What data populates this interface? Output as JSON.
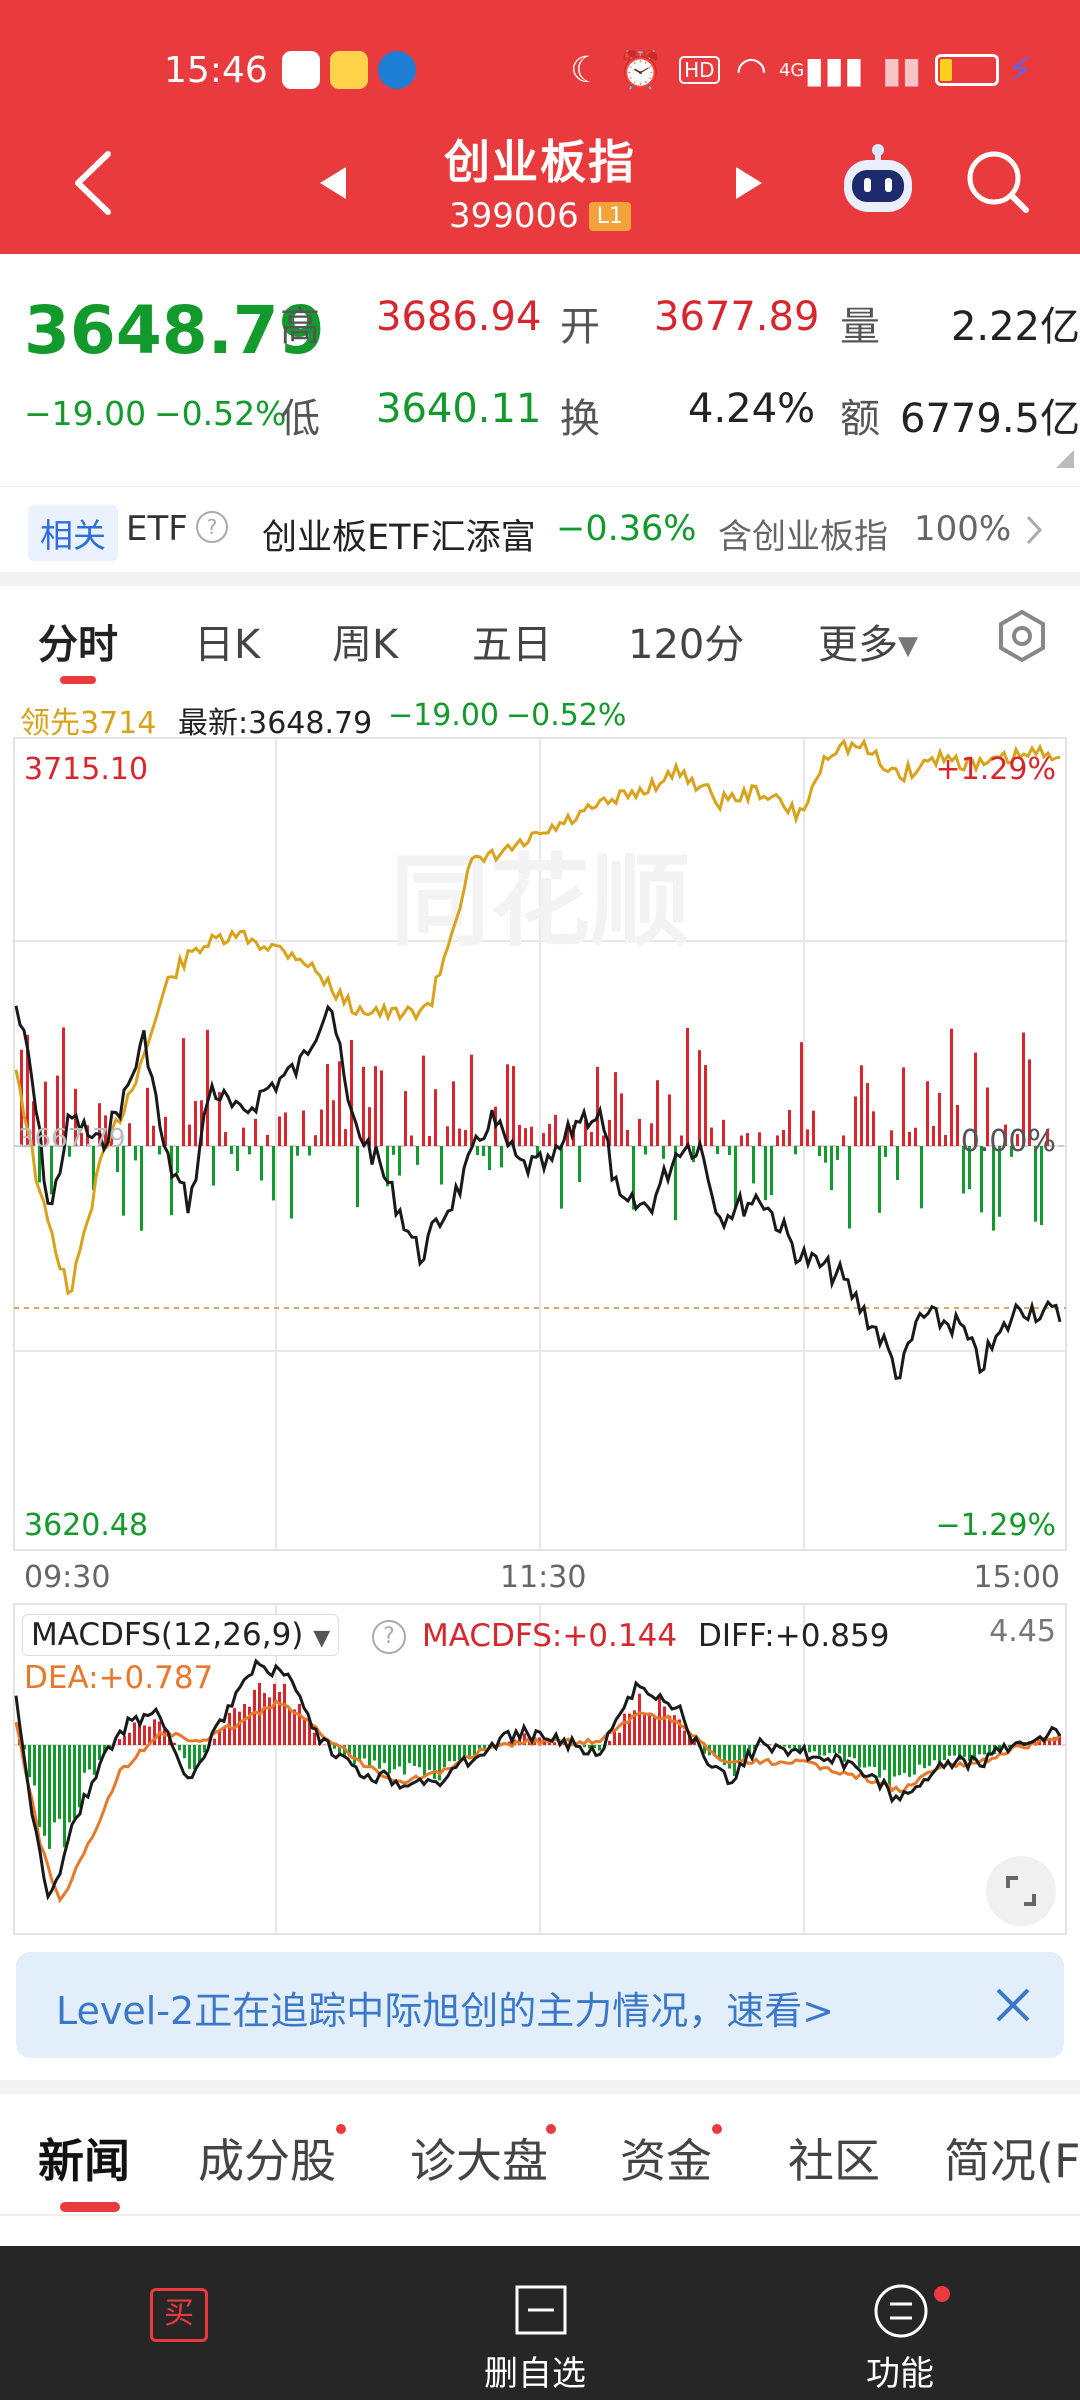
{
  "status_bar": {
    "time": "15:46",
    "network": "4G"
  },
  "header": {
    "title": "创业板指",
    "code": "399006",
    "level_badge": "L1"
  },
  "quote": {
    "price": "3648.79",
    "change": "−19.00",
    "change_pct": "−0.52%",
    "high_label": "高",
    "high": "3686.94",
    "open_label": "开",
    "open": "3677.89",
    "volume_label": "量",
    "volume": "2.22亿",
    "low_label": "低",
    "low": "3640.11",
    "turnover_label": "换",
    "turnover": "4.24%",
    "amount_label": "额",
    "amount": "6779.5亿"
  },
  "etf": {
    "badge": "相关",
    "label": "ETF",
    "name": "创业板ETF汇添富",
    "change": "−0.36%",
    "contains": "含创业板指",
    "weight": "100%"
  },
  "chart_tabs": [
    "分时",
    "日K",
    "周K",
    "五日",
    "120分",
    "更多"
  ],
  "chart_info": {
    "leader": "领先3714",
    "latest_label": "最新:3648.79",
    "change": "−19.00",
    "change_pct": "−0.52%",
    "top_price": "3715.10",
    "bottom_price": "3620.48",
    "top_pct": "+1.29%",
    "bottom_pct": "−1.29%",
    "base_pct": "0.00%",
    "base_price": "3667.79",
    "t_start": "09:30",
    "t_mid": "11:30",
    "t_end": "15:00",
    "watermark": "同花顺"
  },
  "macd": {
    "name": "MACDFS(12,26,9)",
    "macdfs": "MACDFS:+0.144",
    "diff": "DIFF:+0.859",
    "dea": "DEA:+0.787",
    "max": "4.45"
  },
  "banner": {
    "text": "Level-2正在追踪中际旭创的主力情况，速看>"
  },
  "news_tabs": [
    "新闻",
    "成分股",
    "诊大盘",
    "资金",
    "社区",
    "简况(F"
  ],
  "bottom_bar": {
    "buy": "买",
    "remove": "删自选",
    "func": "功能"
  },
  "colors": {
    "header_red": "#e93b3d",
    "up": "#d8262e",
    "down": "#139a2c",
    "leader_line": "#d9a21b",
    "dea": "#e8782a"
  }
}
